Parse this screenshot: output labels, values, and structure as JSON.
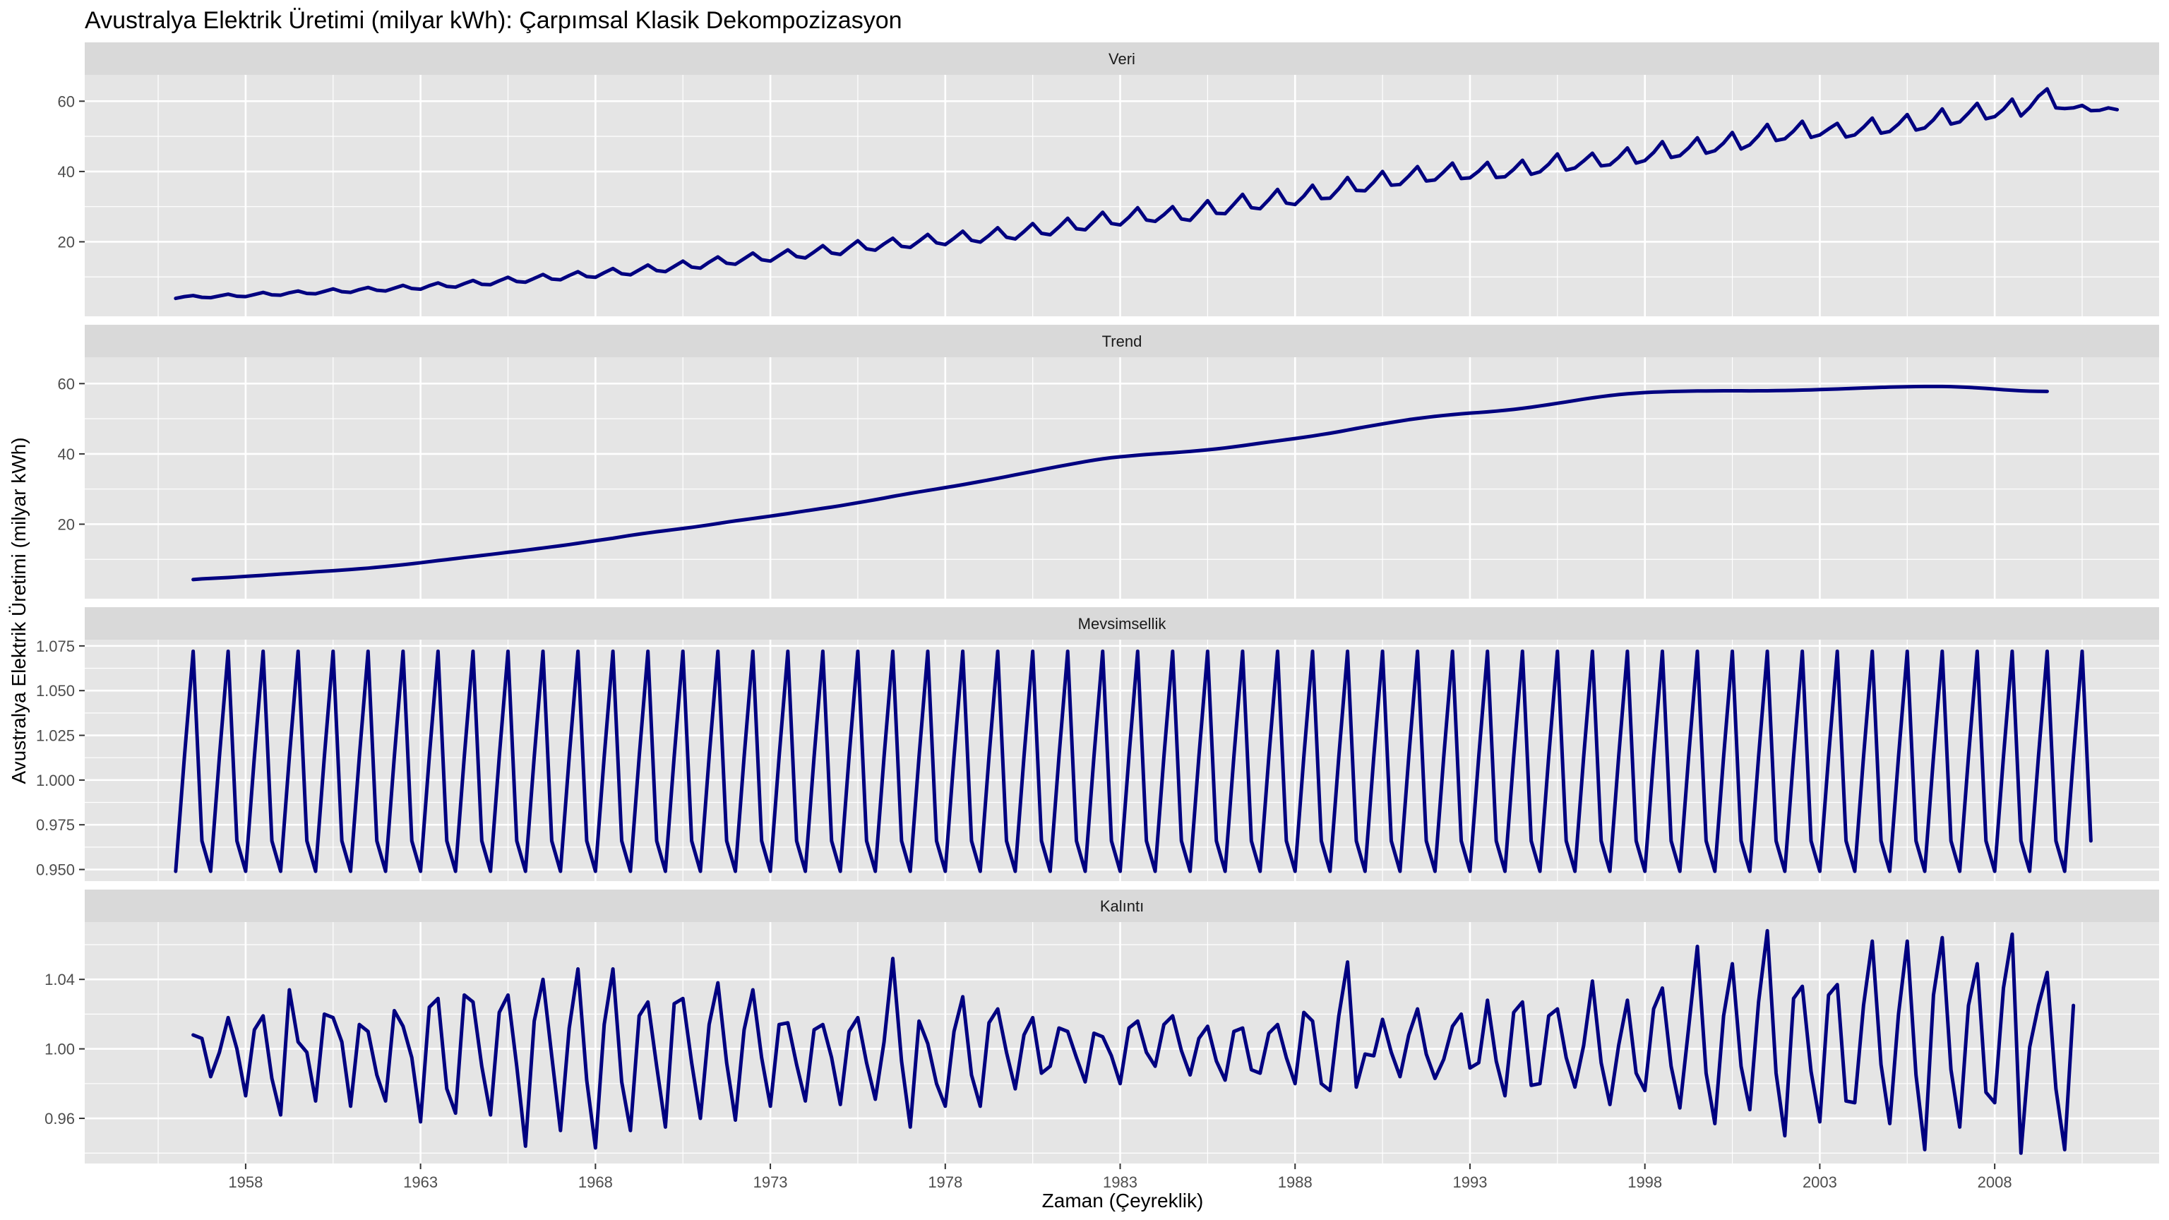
{
  "chart_data": {
    "type": "line",
    "title": "Avustralya Elektrik Üretimi (milyar kWh): Çarpımsal Klasik Dekompozizasyon",
    "xlabel": "Zaman (Çeyreklik)",
    "ylabel": "Avustralya Elektrik Üretimi (milyar kWh)",
    "xlim": [
      1953.4,
      2012.7
    ],
    "x_ticks": [
      1958,
      1963,
      1968,
      1973,
      1978,
      1983,
      1988,
      1993,
      1998,
      2003,
      2008
    ],
    "x_tick_labels": [
      "1958",
      "1963",
      "1968",
      "1973",
      "1978",
      "1983",
      "1988",
      "1993",
      "1998",
      "2003",
      "2008"
    ],
    "line_color": "#000080",
    "panel_background": "#E5E5E5",
    "strip_background": "#D9D9D9",
    "grid_color": "#FFFFFF",
    "facets": [
      {
        "label": "Veri",
        "ylim": [
          -1.2,
          67.5
        ],
        "y_ticks": [
          20,
          40,
          60
        ],
        "y_tick_labels": [
          "20",
          "40",
          "60"
        ],
        "series": {
          "start": 1956.0,
          "freq": 4,
          "values": [
            3.9,
            4.4,
            4.7,
            4.2,
            4.1,
            4.6,
            5.1,
            4.5,
            4.4,
            5.0,
            5.6,
            4.9,
            4.8,
            5.5,
            6.0,
            5.3,
            5.2,
            5.9,
            6.6,
            5.8,
            5.6,
            6.4,
            7.0,
            6.2,
            6.0,
            6.8,
            7.6,
            6.7,
            6.5,
            7.5,
            8.3,
            7.3,
            7.1,
            8.1,
            9.0,
            7.9,
            7.8,
            8.9,
            9.9,
            8.7,
            8.5,
            9.6,
            10.7,
            9.4,
            9.2,
            10.4,
            11.5,
            10.1,
            9.9,
            11.2,
            12.4,
            10.9,
            10.6,
            12.0,
            13.4,
            11.8,
            11.5,
            13.0,
            14.5,
            12.8,
            12.5,
            14.2,
            15.7,
            13.9,
            13.6,
            15.2,
            16.8,
            14.9,
            14.5,
            16.1,
            17.7,
            15.8,
            15.4,
            17.1,
            18.9,
            16.8,
            16.4,
            18.4,
            20.3,
            18.0,
            17.6,
            19.4,
            21.0,
            18.7,
            18.4,
            20.2,
            22.1,
            19.7,
            19.2,
            21.0,
            23.0,
            20.4,
            19.9,
            21.8,
            24.0,
            21.3,
            20.8,
            22.9,
            25.2,
            22.4,
            22.0,
            24.2,
            26.7,
            23.7,
            23.4,
            25.8,
            28.4,
            25.2,
            24.8,
            27.0,
            29.7,
            26.2,
            25.8,
            27.7,
            30.0,
            26.5,
            26.1,
            28.8,
            31.7,
            28.1,
            28.0,
            30.7,
            33.5,
            29.7,
            29.4,
            32.0,
            34.9,
            31.0,
            30.6,
            33.0,
            36.1,
            32.3,
            32.4,
            35.1,
            38.3,
            34.6,
            34.5,
            37.0,
            40.0,
            36.1,
            36.3,
            38.7,
            41.4,
            37.3,
            37.6,
            39.9,
            42.4,
            38.0,
            38.2,
            40.1,
            42.6,
            38.3,
            38.5,
            40.6,
            43.2,
            39.2,
            39.9,
            42.1,
            45.0,
            40.4,
            41.0,
            43.0,
            45.2,
            41.6,
            41.9,
            44.0,
            46.7,
            42.4,
            43.1,
            45.4,
            48.5,
            44.0,
            44.5,
            46.7,
            49.6,
            45.2,
            45.9,
            48.1,
            51.1,
            46.4,
            47.6,
            50.2,
            53.4,
            48.8,
            49.3,
            51.5,
            54.3,
            49.7,
            50.4,
            52.1,
            53.7,
            49.8,
            50.4,
            52.6,
            55.2,
            50.9,
            51.4,
            53.5,
            56.2,
            51.8,
            52.4,
            54.7,
            57.8,
            53.5,
            54.1,
            56.6,
            59.4,
            55.0,
            55.6,
            57.7,
            60.6,
            55.8,
            58.2,
            61.4,
            63.5,
            58.1,
            57.9,
            58.1,
            58.8,
            57.3,
            57.4,
            58.1,
            57.6
          ]
        }
      },
      {
        "label": "Trend",
        "ylim": [
          -1.2,
          67.5
        ],
        "y_ticks": [
          20,
          40,
          60
        ],
        "y_tick_labels": [
          "20",
          "40",
          "60"
        ],
        "series": {
          "start": 1956.5,
          "freq": 4,
          "values": [
            4.25,
            4.44,
            4.57,
            4.7,
            4.83,
            4.99,
            5.15,
            5.3,
            5.46,
            5.64,
            5.8,
            5.96,
            6.12,
            6.28,
            6.45,
            6.6,
            6.76,
            6.94,
            7.12,
            7.31,
            7.5,
            7.73,
            7.96,
            8.21,
            8.47,
            8.74,
            9.03,
            9.34,
            9.65,
            9.93,
            10.23,
            10.52,
            10.81,
            11.1,
            11.39,
            11.69,
            12.0,
            12.29,
            12.6,
            12.91,
            13.23,
            13.55,
            13.86,
            14.21,
            14.57,
            14.93,
            15.29,
            15.65,
            16.0,
            16.41,
            16.82,
            17.18,
            17.52,
            17.86,
            18.16,
            18.47,
            18.78,
            19.1,
            19.45,
            19.8,
            20.19,
            20.58,
            20.94,
            21.28,
            21.61,
            21.95,
            22.29,
            22.65,
            23.0,
            23.39,
            23.77,
            24.14,
            24.51,
            24.87,
            25.25,
            25.68,
            26.11,
            26.53,
            26.97,
            27.42,
            27.9,
            28.35,
            28.78,
            29.2,
            29.6,
            30.0,
            30.41,
            30.82,
            31.24,
            31.69,
            32.15,
            32.6,
            33.06,
            33.54,
            34.04,
            34.52,
            35.0,
            35.49,
            35.98,
            36.45,
            36.91,
            37.35,
            37.8,
            38.22,
            38.6,
            38.93,
            39.18,
            39.41,
            39.62,
            39.82,
            40.0,
            40.17,
            40.34,
            40.52,
            40.71,
            40.93,
            41.16,
            41.42,
            41.7,
            42.01,
            42.34,
            42.69,
            43.05,
            43.38,
            43.71,
            44.04,
            44.37,
            44.72,
            45.09,
            45.49,
            45.88,
            46.31,
            46.77,
            47.24,
            47.68,
            48.11,
            48.53,
            48.94,
            49.35,
            49.74,
            50.07,
            50.39,
            50.68,
            50.94,
            51.18,
            51.4,
            51.6,
            51.77,
            51.96,
            52.17,
            52.4,
            52.66,
            52.96,
            53.29,
            53.65,
            54.01,
            54.4,
            54.78,
            55.18,
            55.58,
            55.95,
            56.29,
            56.6,
            56.87,
            57.1,
            57.29,
            57.45,
            57.57,
            57.67,
            57.76,
            57.82,
            57.87,
            57.9,
            57.92,
            57.93,
            57.95,
            57.95,
            57.95,
            57.94,
            57.95,
            57.97,
            58.0,
            58.04,
            58.09,
            58.15,
            58.22,
            58.3,
            58.38,
            58.47,
            58.56,
            58.65,
            58.75,
            58.84,
            58.93,
            59.0,
            59.07,
            59.12,
            59.16,
            59.19,
            59.2,
            59.18,
            59.13,
            59.05,
            58.93,
            58.79,
            58.63,
            58.45,
            58.27,
            58.1,
            57.96,
            57.86,
            57.81,
            57.79
          ]
        }
      },
      {
        "label": "Mevsimsellik",
        "ylim": [
          0.9435,
          1.0785
        ],
        "y_ticks": [
          0.95,
          0.975,
          1.0,
          1.025,
          1.05,
          1.075
        ],
        "y_tick_labels": [
          "0.950",
          "0.975",
          "1.000",
          "1.025",
          "1.050",
          "1.075"
        ],
        "series": {
          "start": 1956.0,
          "freq": 4,
          "pattern": [
            0.949,
            1.013,
            1.072,
            0.966
          ],
          "periods": 55
        }
      },
      {
        "label": "Kalıntı",
        "ylim": [
          0.934,
          1.073
        ],
        "y_ticks": [
          0.96,
          1.0,
          1.04
        ],
        "y_tick_labels": [
          "0.96",
          "1.00",
          "1.04"
        ],
        "series": {
          "start": 1956.5,
          "freq": 4,
          "values": [
            1.008,
            1.006,
            0.984,
            0.998,
            1.018,
            1.0,
            0.973,
            1.011,
            1.019,
            0.983,
            0.962,
            1.034,
            1.004,
            0.998,
            0.97,
            1.02,
            1.018,
            1.004,
            0.967,
            1.014,
            1.01,
            0.985,
            0.97,
            1.022,
            1.013,
            0.995,
            0.958,
            1.024,
            1.029,
            0.977,
            0.963,
            1.031,
            1.027,
            0.99,
            0.962,
            1.021,
            1.031,
            0.99,
            0.944,
            1.016,
            1.04,
            0.996,
            0.953,
            1.012,
            1.046,
            0.982,
            0.943,
            1.014,
            1.046,
            0.981,
            0.953,
            1.019,
            1.027,
            0.99,
            0.955,
            1.026,
            1.029,
            0.992,
            0.96,
            1.014,
            1.038,
            0.992,
            0.959,
            1.011,
            1.034,
            0.995,
            0.967,
            1.014,
            1.015,
            0.991,
            0.97,
            1.011,
            1.014,
            0.995,
            0.968,
            1.01,
            1.018,
            0.992,
            0.971,
            1.004,
            1.052,
            0.993,
            0.955,
            1.016,
            1.003,
            0.98,
            0.967,
            1.01,
            1.03,
            0.985,
            0.967,
            1.015,
            1.023,
            0.998,
            0.977,
            1.008,
            1.018,
            0.986,
            0.99,
            1.012,
            1.01,
            0.995,
            0.981,
            1.009,
            1.007,
            0.996,
            0.98,
            1.012,
            1.016,
            0.998,
            0.99,
            1.014,
            1.019,
            0.999,
            0.985,
            1.006,
            1.013,
            0.993,
            0.982,
            1.01,
            1.012,
            0.988,
            0.986,
            1.009,
            1.014,
            0.995,
            0.98,
            1.021,
            1.016,
            0.98,
            0.976,
            1.019,
            1.05,
            0.978,
            0.997,
            0.996,
            1.017,
            0.998,
            0.984,
            1.008,
            1.023,
            0.997,
            0.983,
            0.994,
            1.013,
            1.02,
            0.989,
            0.992,
            1.028,
            0.993,
            0.973,
            1.021,
            1.027,
            0.979,
            0.98,
            1.019,
            1.023,
            0.995,
            0.978,
            1.002,
            1.039,
            0.992,
            0.968,
            1.002,
            1.028,
            0.986,
            0.976,
            1.023,
            1.035,
            0.99,
            0.966,
            1.012,
            1.059,
            0.986,
            0.957,
            1.019,
            1.049,
            0.99,
            0.965,
            1.027,
            1.068,
            0.986,
            0.95,
            1.029,
            1.036,
            0.987,
            0.958,
            1.031,
            1.037,
            0.97,
            0.969,
            1.025,
            1.062,
            0.991,
            0.957,
            1.02,
            1.062,
            0.985,
            0.942,
            1.031,
            1.064,
            0.988,
            0.955,
            1.025,
            1.049,
            0.975,
            0.969,
            1.035,
            1.066,
            0.94,
            1.001,
            1.025,
            1.044,
            0.977,
            0.942,
            1.025
          ]
        }
      }
    ]
  }
}
